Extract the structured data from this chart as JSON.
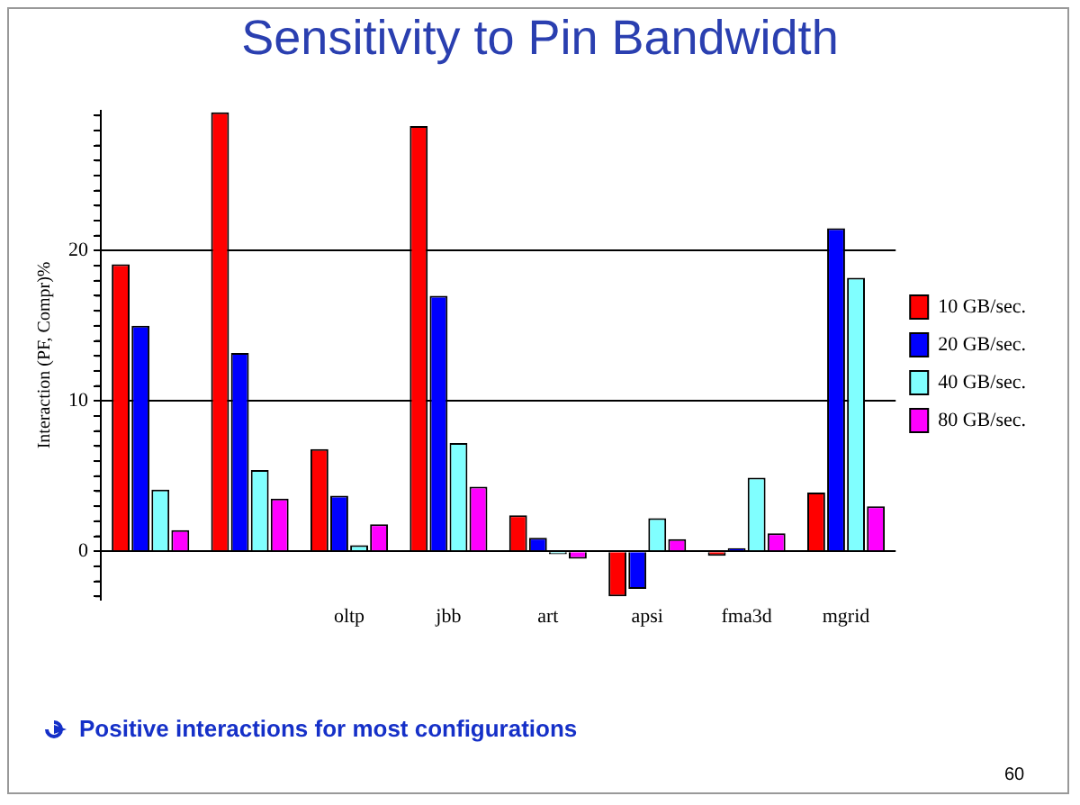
{
  "chart_data": {
    "type": "bar",
    "title": "Sensitivity to Pin Bandwidth",
    "ylabel": "Interaction (PF, Compr)%",
    "categories": [
      null,
      null,
      "oltp",
      "jbb",
      "art",
      "apsi",
      "fma3d",
      "mgrid"
    ],
    "series": [
      {
        "name": "10 GB/sec.",
        "color": "#ff0000",
        "values": [
          19.1,
          29.2,
          6.8,
          28.3,
          2.4,
          -3.0,
          -0.3,
          3.9
        ]
      },
      {
        "name": "20 GB/sec.",
        "color": "#0000ff",
        "values": [
          15.0,
          13.2,
          3.7,
          17.0,
          0.9,
          -2.5,
          0.2,
          21.5
        ]
      },
      {
        "name": "40 GB/sec.",
        "color": "#80ffff",
        "values": [
          4.1,
          5.4,
          0.4,
          7.2,
          -0.2,
          2.2,
          4.9,
          18.2
        ]
      },
      {
        "name": "80 GB/sec.",
        "color": "#ff00ff",
        "values": [
          1.4,
          3.5,
          1.8,
          4.3,
          -0.5,
          0.8,
          1.2,
          3.0
        ]
      }
    ],
    "ylim": [
      -3.2,
      29.3
    ],
    "yticks": [
      {
        "value": -3,
        "label": null
      },
      {
        "value": -2,
        "label": null
      },
      {
        "value": -1,
        "label": null
      },
      0,
      {
        "value": 1,
        "label": null
      },
      {
        "value": 2,
        "label": null
      },
      {
        "value": 3,
        "label": null
      },
      {
        "value": 4,
        "label": null
      },
      {
        "value": 5,
        "label": null
      },
      {
        "value": 6,
        "label": null
      },
      {
        "value": 7,
        "label": null
      },
      {
        "value": 8,
        "label": null
      },
      {
        "value": 9,
        "label": null
      },
      10,
      {
        "value": 11,
        "label": null
      },
      {
        "value": 12,
        "label": null
      },
      {
        "value": 13,
        "label": null
      },
      {
        "value": 14,
        "label": null
      },
      {
        "value": 15,
        "label": null
      },
      {
        "value": 16,
        "label": null
      },
      {
        "value": 17,
        "label": null
      },
      {
        "value": 18,
        "label": null
      },
      {
        "value": 19,
        "label": null
      },
      20,
      {
        "value": 21,
        "label": null
      },
      {
        "value": 22,
        "label": null
      },
      {
        "value": 23,
        "label": null
      },
      {
        "value": 24,
        "label": null
      },
      {
        "value": 25,
        "label": null
      },
      {
        "value": 26,
        "label": null
      },
      {
        "value": 27,
        "label": null
      },
      {
        "value": 28,
        "label": null
      },
      {
        "value": 29,
        "label": null
      }
    ],
    "grid": "y",
    "legend": "right",
    "annotations": [
      "Positive interactions for most configurations",
      "60"
    ]
  }
}
